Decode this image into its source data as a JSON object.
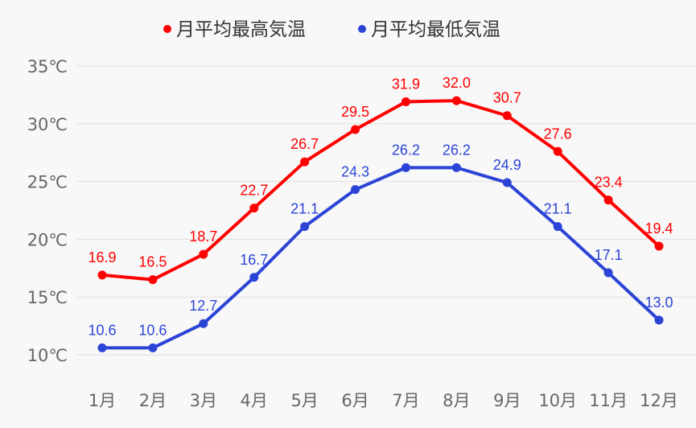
{
  "chart_data": {
    "type": "line",
    "title": "",
    "xlabel": "",
    "ylabel": "",
    "categories": [
      "1月",
      "2月",
      "3月",
      "4月",
      "5月",
      "6月",
      "7月",
      "8月",
      "9月",
      "10月",
      "11月",
      "12月"
    ],
    "series": [
      {
        "name": "月平均最高気温",
        "color": "#ff0000",
        "values": [
          16.9,
          16.5,
          18.7,
          22.7,
          26.7,
          29.5,
          31.9,
          32.0,
          30.7,
          27.6,
          23.4,
          19.4
        ]
      },
      {
        "name": "月平均最低気温",
        "color": "#2b44d6",
        "values": [
          10.6,
          10.6,
          12.7,
          16.7,
          21.1,
          24.3,
          26.2,
          26.2,
          24.9,
          21.1,
          17.1,
          13.0
        ]
      }
    ],
    "ylim": [
      10,
      35
    ],
    "yticks": [
      "10℃",
      "15℃",
      "20℃",
      "25℃",
      "30℃",
      "35℃"
    ],
    "ytick_values": [
      10,
      15,
      20,
      25,
      30,
      35
    ],
    "grid": true,
    "legend_position": "top-center",
    "data_labels": true
  }
}
